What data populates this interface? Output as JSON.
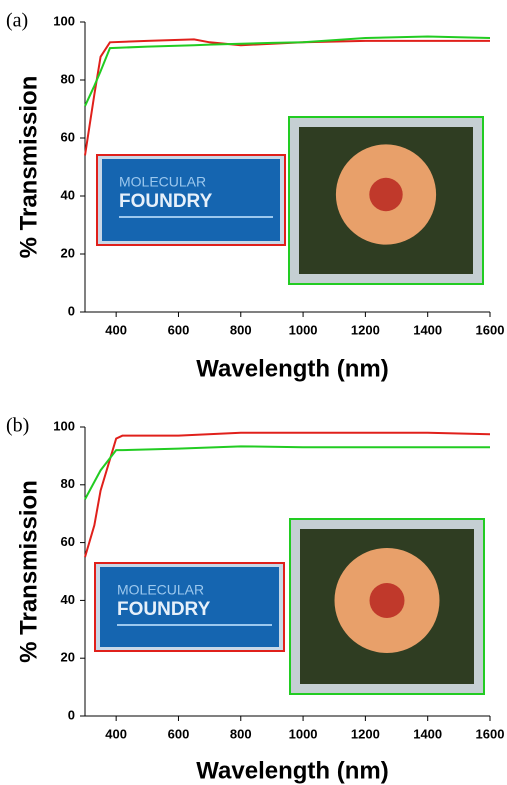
{
  "chart_data": [
    {
      "type": "line",
      "panel_label": "(a)",
      "xlabel": "Wavelength (nm)",
      "ylabel": "% Transmission",
      "x": [
        300,
        330,
        350,
        380,
        500,
        650,
        700,
        800,
        900,
        1000,
        1200,
        1400,
        1600
      ],
      "series": [
        {
          "color": "#e0201b",
          "values": [
            54,
            75,
            88,
            93,
            93.5,
            94,
            93,
            92,
            92.5,
            93,
            93.5,
            93.5,
            93.5
          ]
        },
        {
          "color": "#22cc22",
          "values": [
            71,
            78,
            83,
            91,
            91.5,
            92,
            92.2,
            92.5,
            92.8,
            93,
            94.5,
            95,
            94.5
          ]
        }
      ],
      "xlim": [
        300,
        1600
      ],
      "xticks": [
        400,
        600,
        800,
        1000,
        1200,
        1400,
        1600
      ],
      "ylim": [
        0,
        100
      ],
      "yticks": [
        0,
        20,
        40,
        60,
        80,
        100
      ],
      "annotations": [
        "MOLECULAR",
        "FOUNDRY"
      ]
    },
    {
      "type": "line",
      "panel_label": "(b)",
      "xlabel": "Wavelength (nm)",
      "ylabel": "% Transmission",
      "x": [
        300,
        330,
        350,
        400,
        420,
        600,
        800,
        1000,
        1200,
        1400,
        1600
      ],
      "series": [
        {
          "color": "#e0201b",
          "values": [
            55,
            66,
            78,
            96,
            97,
            97,
            98,
            98,
            98,
            98,
            97.5
          ]
        },
        {
          "color": "#22cc22",
          "values": [
            75,
            81,
            85,
            92,
            92,
            92.5,
            93.3,
            93,
            93,
            93,
            93
          ]
        }
      ],
      "xlim": [
        300,
        1600
      ],
      "xticks": [
        400,
        600,
        800,
        1000,
        1200,
        1400,
        1600
      ],
      "ylim": [
        0,
        100
      ],
      "yticks": [
        0,
        20,
        40,
        60,
        80,
        100
      ],
      "annotations": [
        "MOLECULAR",
        "FOUNDRY"
      ]
    }
  ]
}
